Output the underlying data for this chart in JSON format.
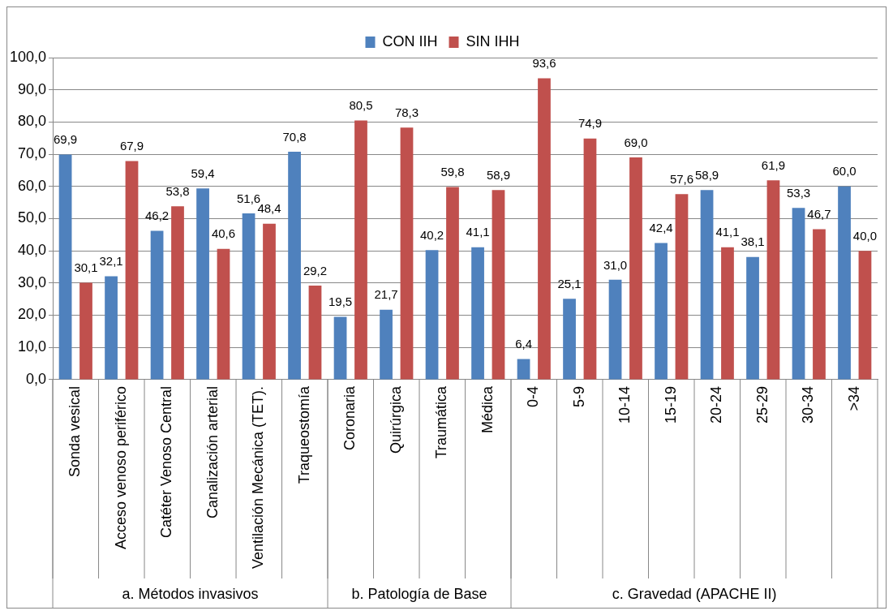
{
  "chart_data": {
    "type": "bar",
    "categories": [
      "Sonda vesical",
      "Acceso venoso periférico",
      "Catéter Venoso Central",
      "Canalización arterial",
      "Ventilación Mecánica (TET).",
      "Traqueostomía",
      "Coronaria",
      "Quirúrgica",
      "Traumática",
      "Médica",
      "0-4",
      "5-9",
      "10-14",
      "15-19",
      "20-24",
      "25-29",
      "30-34",
      ">34"
    ],
    "series": [
      {
        "name": "CON IIH",
        "color": "#4f81bd",
        "values": [
          69.9,
          32.1,
          46.2,
          59.4,
          51.6,
          70.8,
          19.5,
          21.7,
          40.2,
          41.1,
          6.4,
          25.1,
          31.0,
          42.4,
          58.9,
          38.1,
          53.3,
          60.0
        ],
        "value_labels": [
          "69,9",
          "32,1",
          "46,2",
          "59,4",
          "51,6",
          "70,8",
          "19,5",
          "21,7",
          "40,2",
          "41,1",
          "6,4",
          "25,1",
          "31,0",
          "42,4",
          "58,9",
          "38,1",
          "53,3",
          "60,0"
        ]
      },
      {
        "name": "SIN IHH",
        "color": "#c0504d",
        "values": [
          30.1,
          67.9,
          53.8,
          40.6,
          48.4,
          29.2,
          80.5,
          78.3,
          59.8,
          58.9,
          93.6,
          74.9,
          69.0,
          57.6,
          41.1,
          61.9,
          46.7,
          40.0
        ],
        "value_labels": [
          "30,1",
          "67,9",
          "53,8",
          "40,6",
          "48,4",
          "29,2",
          "80,5",
          "78,3",
          "59,8",
          "58,9",
          "93,6",
          "74,9",
          "69,0",
          "57,6",
          "41,1",
          "61,9",
          "46,7",
          "40,0"
        ]
      }
    ],
    "ylim": [
      0,
      100
    ],
    "yticks": [
      {
        "value": 0,
        "label": "0,0"
      },
      {
        "value": 10,
        "label": "10,0"
      },
      {
        "value": 20,
        "label": "20,0"
      },
      {
        "value": 30,
        "label": "30,0"
      },
      {
        "value": 40,
        "label": "40,0"
      },
      {
        "value": 50,
        "label": "50,0"
      },
      {
        "value": 60,
        "label": "60,0"
      },
      {
        "value": 70,
        "label": "70,0"
      },
      {
        "value": 80,
        "label": "80,0"
      },
      {
        "value": 90,
        "label": "90,0"
      },
      {
        "value": 100,
        "label": "100,0"
      }
    ],
    "grid": "y",
    "legend": "top",
    "annotations": [
      "a. Métodos invasivos",
      "b. Patología de Base",
      "c. Gravedad (APACHE II)"
    ]
  }
}
